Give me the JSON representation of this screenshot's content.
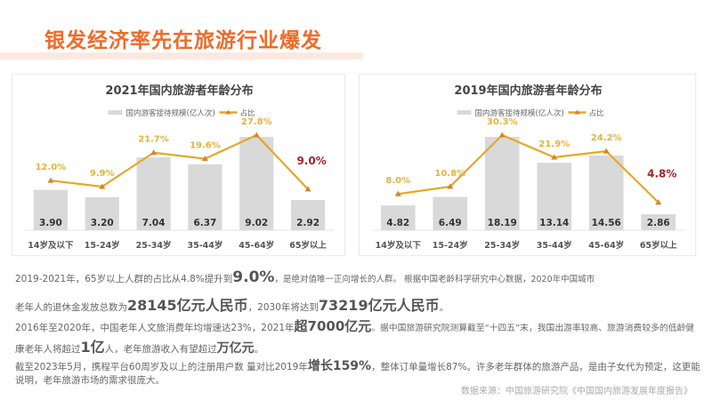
{
  "header": {
    "title": "银发经济率先在旅游行业爆发",
    "accent_color": "#ee6b2a"
  },
  "chart_data": [
    {
      "type": "bar",
      "title": "2021年国内旅游者年龄分布",
      "categories": [
        "14岁及以下",
        "15-24岁",
        "25-34岁",
        "35-44岁",
        "45-64岁",
        "65岁以上"
      ],
      "series": [
        {
          "name": "国内游客接待规模(亿人次)",
          "type": "bar",
          "color": "#d9d9d9",
          "values": [
            3.9,
            3.2,
            7.04,
            6.37,
            9.02,
            2.92
          ],
          "labels": [
            "3.90",
            "3.20",
            "7.04",
            "6.37",
            "9.02",
            "2.92"
          ]
        },
        {
          "name": "占比",
          "type": "line",
          "color": "#e5a823",
          "values": [
            12.0,
            9.9,
            21.7,
            19.6,
            27.8,
            9.0
          ],
          "labels": [
            "12.0%",
            "9.9%",
            "21.7%",
            "19.6%",
            "27.8%",
            "9.0%"
          ]
        }
      ],
      "highlight_color": "#a3232b",
      "legend": "top-center"
    },
    {
      "type": "bar",
      "title": "2019年国内旅游者年龄分布",
      "categories": [
        "14岁及以下",
        "15-24岁",
        "25-34岁",
        "35-44岁",
        "45-64岁",
        "65岁以上"
      ],
      "series": [
        {
          "name": "国内游客接待规模(亿人次)",
          "type": "bar",
          "color": "#d9d9d9",
          "values": [
            4.82,
            6.49,
            18.19,
            13.14,
            14.56,
            2.86
          ],
          "labels": [
            "4.82",
            "6.49",
            "18.19",
            "13.14",
            "14.56",
            "2.86"
          ]
        },
        {
          "name": "占比",
          "type": "line",
          "color": "#e5a823",
          "values": [
            8.0,
            10.8,
            30.3,
            21.9,
            24.2,
            4.8
          ],
          "labels": [
            "8.0%",
            "10.8%",
            "30.3%",
            "21.9%",
            "24.2%",
            "4.8%"
          ]
        }
      ],
      "highlight_color": "#a3232b",
      "legend": "top-center"
    }
  ],
  "paragraphs": {
    "p1_a": "2019-2021年，65岁以上人群的占比从4.8%提升到",
    "p1_b": "9.0%",
    "p1_c": "，是绝对值唯一正向增长的人群。 根据中国老龄科学研究中心数据，2020年中国城市",
    "p2_a": "老年人的退休金发放总数为",
    "p2_b": "28145亿元人民币",
    "p2_c": "，2030年将达到",
    "p2_d": "73219亿元人民币",
    "p2_e": "。",
    "p3_a": "2016年至2020年，中国老年人文旅消费年均增速达23%，2021年",
    "p3_b": "超7000亿元",
    "p3_c": "。据中国旅游研究院测算截至“十四五”末，我国出游率较高、旅游消费较多的低龄健",
    "p4_a": "康老年人将超过",
    "p4_b": "1亿",
    "p4_c": "人，老年旅游收入有望超过",
    "p4_d": "万亿元",
    "p4_e": "。",
    "p5_a": "截至2023年5月，携程平台60周岁及以上的注册用户数 量对比2019年",
    "p5_b": "增长159%",
    "p5_c": "，整体订单量增长87%。许多老年群体的旅游产品，是由子女代为预定，这更能",
    "p6": "说明，老年旅游市场的需求很庞大。"
  },
  "source": "数据来源：中国旅游研究院《中国国内旅游发展年度报告》"
}
